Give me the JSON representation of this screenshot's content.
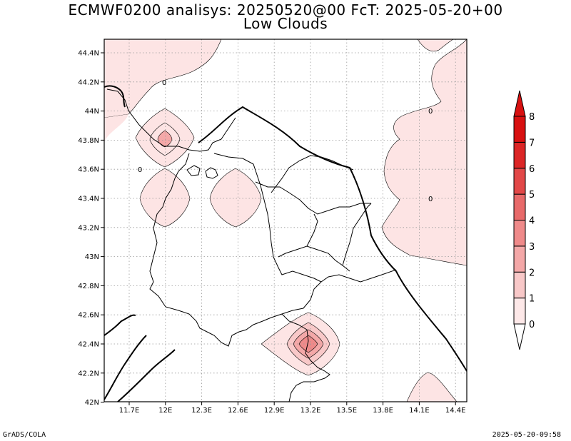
{
  "title_line1": "ECMWF0200 analisys: 20250520@00 FcT: 2025-05-20+00",
  "title_line2": "Low Clouds",
  "footer_left": "GrADS/COLA",
  "footer_right": "2025-05-20-09:58",
  "map": {
    "lon_labels": [
      "11.7E",
      "12E",
      "12.3E",
      "12.6E",
      "12.9E",
      "13.2E",
      "13.5E",
      "13.8E",
      "14.1E",
      "14.4E"
    ],
    "lat_labels": [
      "44.4N",
      "44.2N",
      "44N",
      "43.8N",
      "43.6N",
      "43.4N",
      "43.2N",
      "43N",
      "42.8N",
      "42.6N",
      "42.4N",
      "42.2N",
      "42N"
    ],
    "contour_zero_label": "0"
  },
  "colorbar": {
    "labels": [
      "0",
      "1",
      "2",
      "3",
      "4",
      "5",
      "6",
      "7",
      "8"
    ],
    "colors": [
      "#ffffff",
      "#fde8e8",
      "#f8c8c8",
      "#f4a8a8",
      "#ef8a8a",
      "#e86a6a",
      "#e24848",
      "#dc2626",
      "#d81010"
    ]
  }
}
